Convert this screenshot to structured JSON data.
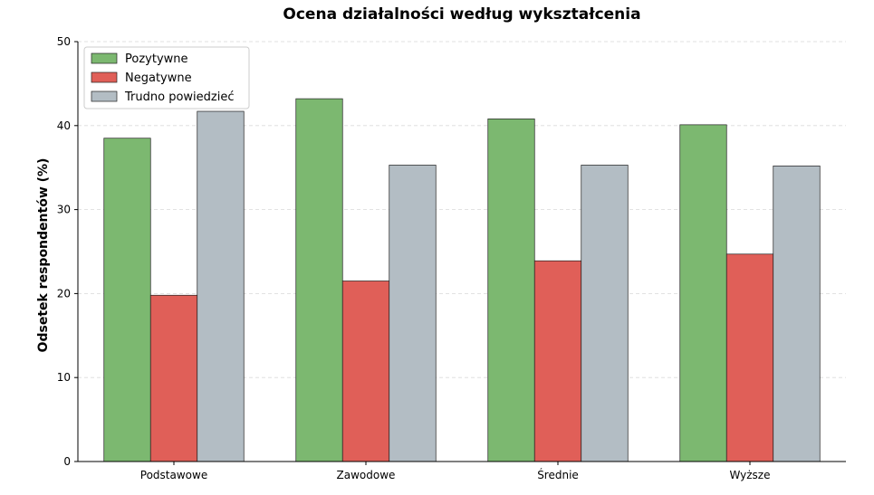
{
  "chart_data": {
    "type": "bar",
    "title": "Ocena działalności według wykształcenia",
    "xlabel": "",
    "ylabel": "Odsetek respondentów (%)",
    "ylim": [
      0,
      50
    ],
    "yticks": [
      0,
      10,
      20,
      30,
      40,
      50
    ],
    "grid": true,
    "legend_position": "top-left",
    "categories": [
      "Podstawowe",
      "Zawodowe",
      "Średnie",
      "Wyższe"
    ],
    "series": [
      {
        "name": "Pozytywne",
        "color": "#7cb870",
        "values": [
          38.5,
          43.2,
          40.8,
          40.1
        ]
      },
      {
        "name": "Negatywne",
        "color": "#e05f58",
        "values": [
          19.8,
          21.5,
          23.9,
          24.7
        ]
      },
      {
        "name": "Trudno powiedzieć",
        "color": "#b3bdc4",
        "values": [
          41.7,
          35.3,
          35.3,
          35.2
        ]
      }
    ]
  }
}
